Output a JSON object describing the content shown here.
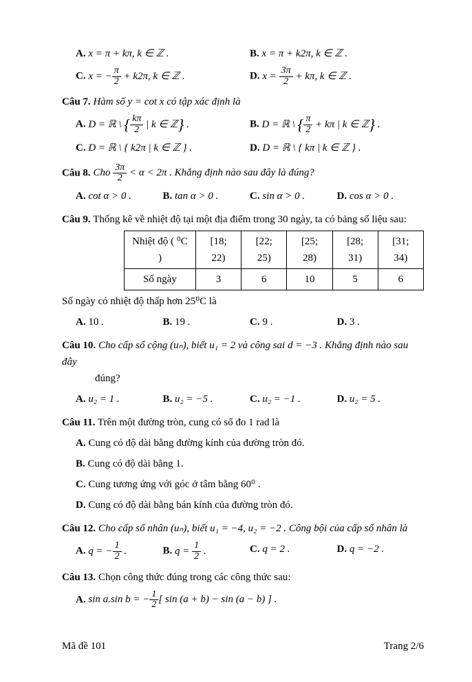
{
  "q6": {
    "A": "x = π + kπ, k ∈ ℤ .",
    "B": "x = π + k2π, k ∈ ℤ .",
    "C_pre": "x = −",
    "C_num": "π",
    "C_den": "2",
    "C_post": " + k2π, k ∈ ℤ .",
    "D_pre": "x = ",
    "D_num": "3π",
    "D_den": "2",
    "D_post": " + kπ, k ∈ ℤ ."
  },
  "q7": {
    "label": "Câu 7.",
    "text": " Hàm số  y = cot x  có tập xác định là",
    "A_pre": "D = ℝ \\ ",
    "A_num": "kπ",
    "A_den": "2",
    "A_post": " | k ∈ ℤ",
    "B_pre": "D = ℝ \\ ",
    "B_num": "π",
    "B_den": "2",
    "B_post": " + kπ | k ∈ ℤ",
    "C": "D = ℝ \\ { k2π | k ∈ ℤ } .",
    "D": "D = ℝ \\ { kπ | k ∈ ℤ } ."
  },
  "q8": {
    "label": "Câu 8.",
    "pre": " Cho ",
    "num": "3π",
    "den": "2",
    "post": " < α < 2π . Khẳng định nào sau đây là đúng?",
    "A": "cot α > 0 .",
    "B": "tan α > 0 .",
    "C": "sin α > 0 .",
    "D": "cos α > 0 ."
  },
  "q9": {
    "label": "Câu 9.",
    "text": " Thống kê về nhiệt độ tại một địa điểm trong  30 ngày, ta có bảng số liệu sau:",
    "h1": "Nhiệt độ ( ⁰C )",
    "c1": "[18; 22)",
    "c2": "[22; 25)",
    "c3": "[25; 28)",
    "c4": "[28; 31)",
    "c5": "[31; 34)",
    "r1": "Số ngày",
    "v1": "3",
    "v2": "6",
    "v3": "10",
    "v4": "5",
    "v5": "6",
    "after": "Số ngày có nhiệt độ thấp hơn  25⁰C  là",
    "A": "10 .",
    "B": "19 .",
    "C": "9 .",
    "D": "3 ."
  },
  "q10": {
    "label": "Câu 10.",
    "text": " Cho cấp số cộng (uₙ), biết u₁ = 2 và công sai d = −3 . Khẳng định nào sau đây",
    "text2": "đúng?",
    "A": "u₂ = 1 .",
    "B": "u₂ = −5 .",
    "C": "u₂ = −1 .",
    "D": "u₂ = 5 ."
  },
  "q11": {
    "label": "Câu 11.",
    "text": " Trên một đường tròn, cung có số đo 1 rad là",
    "A": "Cung có độ dài bằng đường kính của đường tròn đó.",
    "B": "Cung có độ dài bằng 1.",
    "C": "Cung tương ứng với góc ở tâm bằng  60⁰ .",
    "D": "Cung có độ dài bằng bán kính của đường tròn đó."
  },
  "q12": {
    "label": "Câu 12.",
    "text": " Cho cấp số nhân (uₙ), biết u₁ = −4, u₂ = −2 . Công bội của cấp số nhân là",
    "A_pre": "q = −",
    "A_num": "1",
    "A_den": "2",
    "A_post": " .",
    "B_pre": "q = ",
    "B_num": "1",
    "B_den": "2",
    "B_post": " .",
    "C": "q = 2 .",
    "D": "q = −2 ."
  },
  "q13": {
    "label": "Câu 13.",
    "text": " Chọn công thức đúng trong các công thức sau:",
    "A_pre": "sin a.sin b = −",
    "A_num": "1",
    "A_den": "2",
    "A_post": "[ sin (a + b) − sin (a − b) ] ."
  },
  "footer": {
    "left": "Mã đề 101",
    "right": "Trang 2/6"
  }
}
